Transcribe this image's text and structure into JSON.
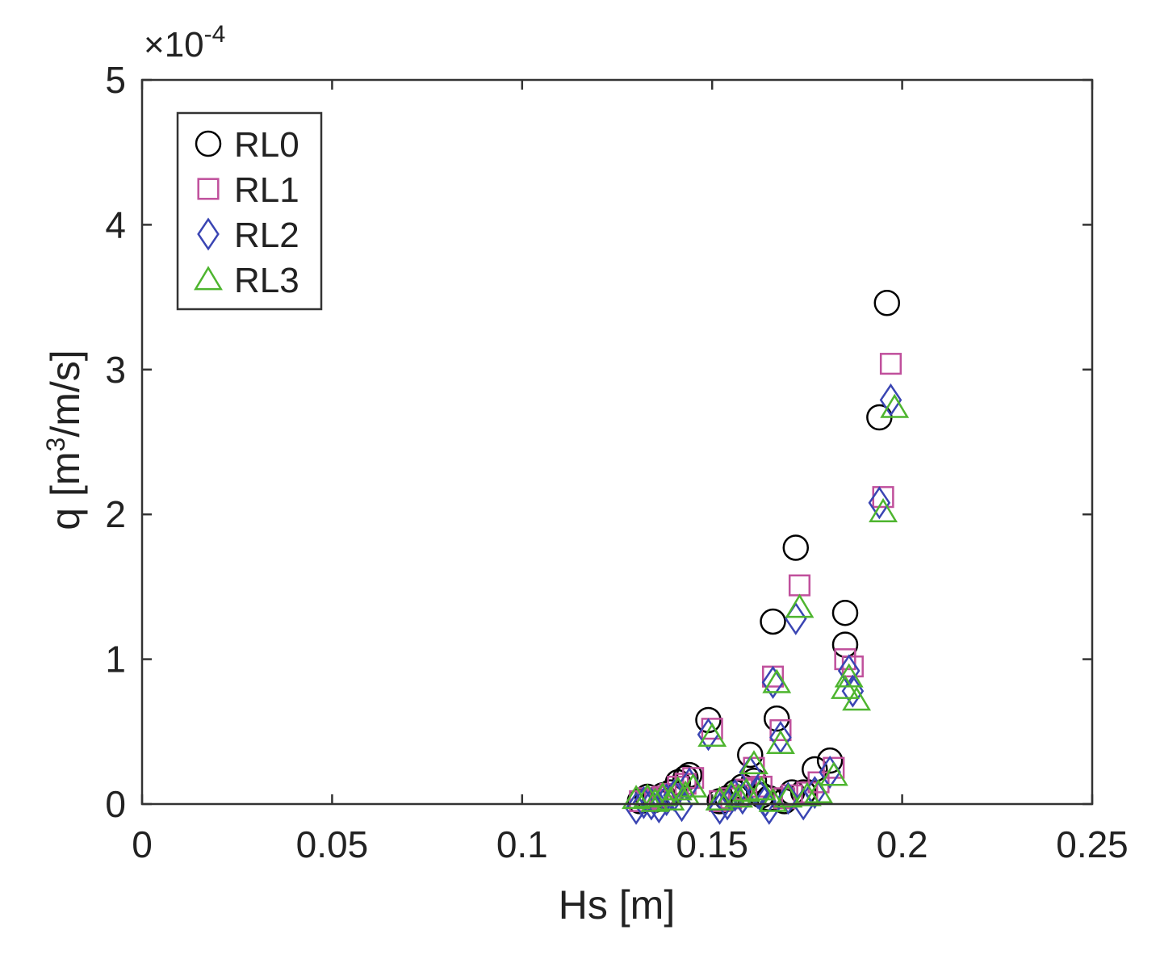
{
  "chart_data": {
    "type": "scatter",
    "xlabel": "Hs [m]",
    "ylabel_parts": {
      "pre": "q  [m",
      "sup": "3",
      "post": "/m/s]"
    },
    "y_exponent_label": "×10",
    "y_exponent_power": "-4",
    "xlim": [
      0,
      0.25
    ],
    "ylim": [
      0,
      5
    ],
    "y_scale_factor": 0.0001,
    "x_ticks": [
      0,
      0.05,
      0.1,
      0.15,
      0.2,
      0.25
    ],
    "x_tick_labels": [
      "0",
      "0.05",
      "0.1",
      "0.15",
      "0.2",
      "0.25"
    ],
    "y_ticks": [
      0,
      1,
      2,
      3,
      4,
      5
    ],
    "y_tick_labels": [
      "0",
      "1",
      "2",
      "3",
      "4",
      "5"
    ],
    "grid": false,
    "legend_position": "top-left",
    "series": [
      {
        "name": "RL0",
        "marker": "circle",
        "color": "#000000",
        "x": [
          0.131,
          0.133,
          0.135,
          0.137,
          0.139,
          0.141,
          0.143,
          0.144,
          0.149,
          0.152,
          0.154,
          0.156,
          0.158,
          0.16,
          0.161,
          0.163,
          0.165,
          0.166,
          0.167,
          0.169,
          0.171,
          0.172,
          0.174,
          0.177,
          0.181,
          0.185,
          0.185,
          0.194,
          0.196
        ],
        "y": [
          0.02,
          0.05,
          0.03,
          0.06,
          0.08,
          0.15,
          0.18,
          0.2,
          0.58,
          0.02,
          0.04,
          0.08,
          0.12,
          0.34,
          0.16,
          0.06,
          0.04,
          1.26,
          0.59,
          0.02,
          0.08,
          1.77,
          0.08,
          0.24,
          0.3,
          1.32,
          1.1,
          2.67,
          3.46
        ]
      },
      {
        "name": "RL1",
        "marker": "square",
        "color": "#c0509c",
        "x": [
          0.131,
          0.133,
          0.135,
          0.137,
          0.139,
          0.141,
          0.143,
          0.145,
          0.15,
          0.152,
          0.155,
          0.157,
          0.159,
          0.161,
          0.163,
          0.166,
          0.168,
          0.169,
          0.171,
          0.173,
          0.175,
          0.178,
          0.182,
          0.185,
          0.187,
          0.195,
          0.197
        ],
        "y": [
          0.02,
          0.04,
          0.03,
          0.05,
          0.07,
          0.12,
          0.14,
          0.18,
          0.52,
          0.02,
          0.04,
          0.06,
          0.1,
          0.25,
          0.12,
          0.88,
          0.51,
          0.04,
          0.06,
          1.51,
          0.08,
          0.15,
          0.25,
          1.0,
          0.95,
          2.12,
          3.04
        ]
      },
      {
        "name": "RL2",
        "marker": "diamond",
        "color": "#3a45b3",
        "x": [
          0.13,
          0.132,
          0.134,
          0.136,
          0.138,
          0.14,
          0.142,
          0.144,
          0.149,
          0.152,
          0.154,
          0.156,
          0.158,
          0.16,
          0.162,
          0.164,
          0.165,
          0.166,
          0.168,
          0.17,
          0.172,
          0.174,
          0.177,
          0.181,
          0.186,
          0.187,
          0.194,
          0.197
        ],
        "y": [
          -0.03,
          0.01,
          0.0,
          -0.02,
          0.03,
          0.06,
          -0.01,
          0.14,
          0.48,
          -0.03,
          0.0,
          0.06,
          0.04,
          0.22,
          0.08,
          0.02,
          -0.03,
          0.84,
          0.46,
          0.04,
          1.28,
          0.0,
          0.08,
          0.22,
          0.92,
          0.78,
          2.08,
          2.79
        ]
      },
      {
        "name": "RL3",
        "marker": "triangle",
        "color": "#4eb52f",
        "x": [
          0.13,
          0.133,
          0.135,
          0.137,
          0.139,
          0.141,
          0.143,
          0.145,
          0.15,
          0.152,
          0.155,
          0.157,
          0.159,
          0.161,
          0.163,
          0.166,
          0.167,
          0.168,
          0.17,
          0.173,
          0.175,
          0.178,
          0.182,
          0.185,
          0.186,
          0.188,
          0.195,
          0.198
        ],
        "y": [
          0.04,
          0.05,
          0.02,
          0.06,
          0.03,
          0.1,
          0.07,
          0.12,
          0.47,
          0.03,
          0.07,
          0.05,
          0.09,
          0.28,
          0.1,
          0.02,
          0.84,
          0.42,
          0.05,
          1.36,
          0.06,
          0.08,
          0.2,
          0.8,
          0.88,
          0.72,
          2.02,
          2.74
        ]
      }
    ]
  }
}
